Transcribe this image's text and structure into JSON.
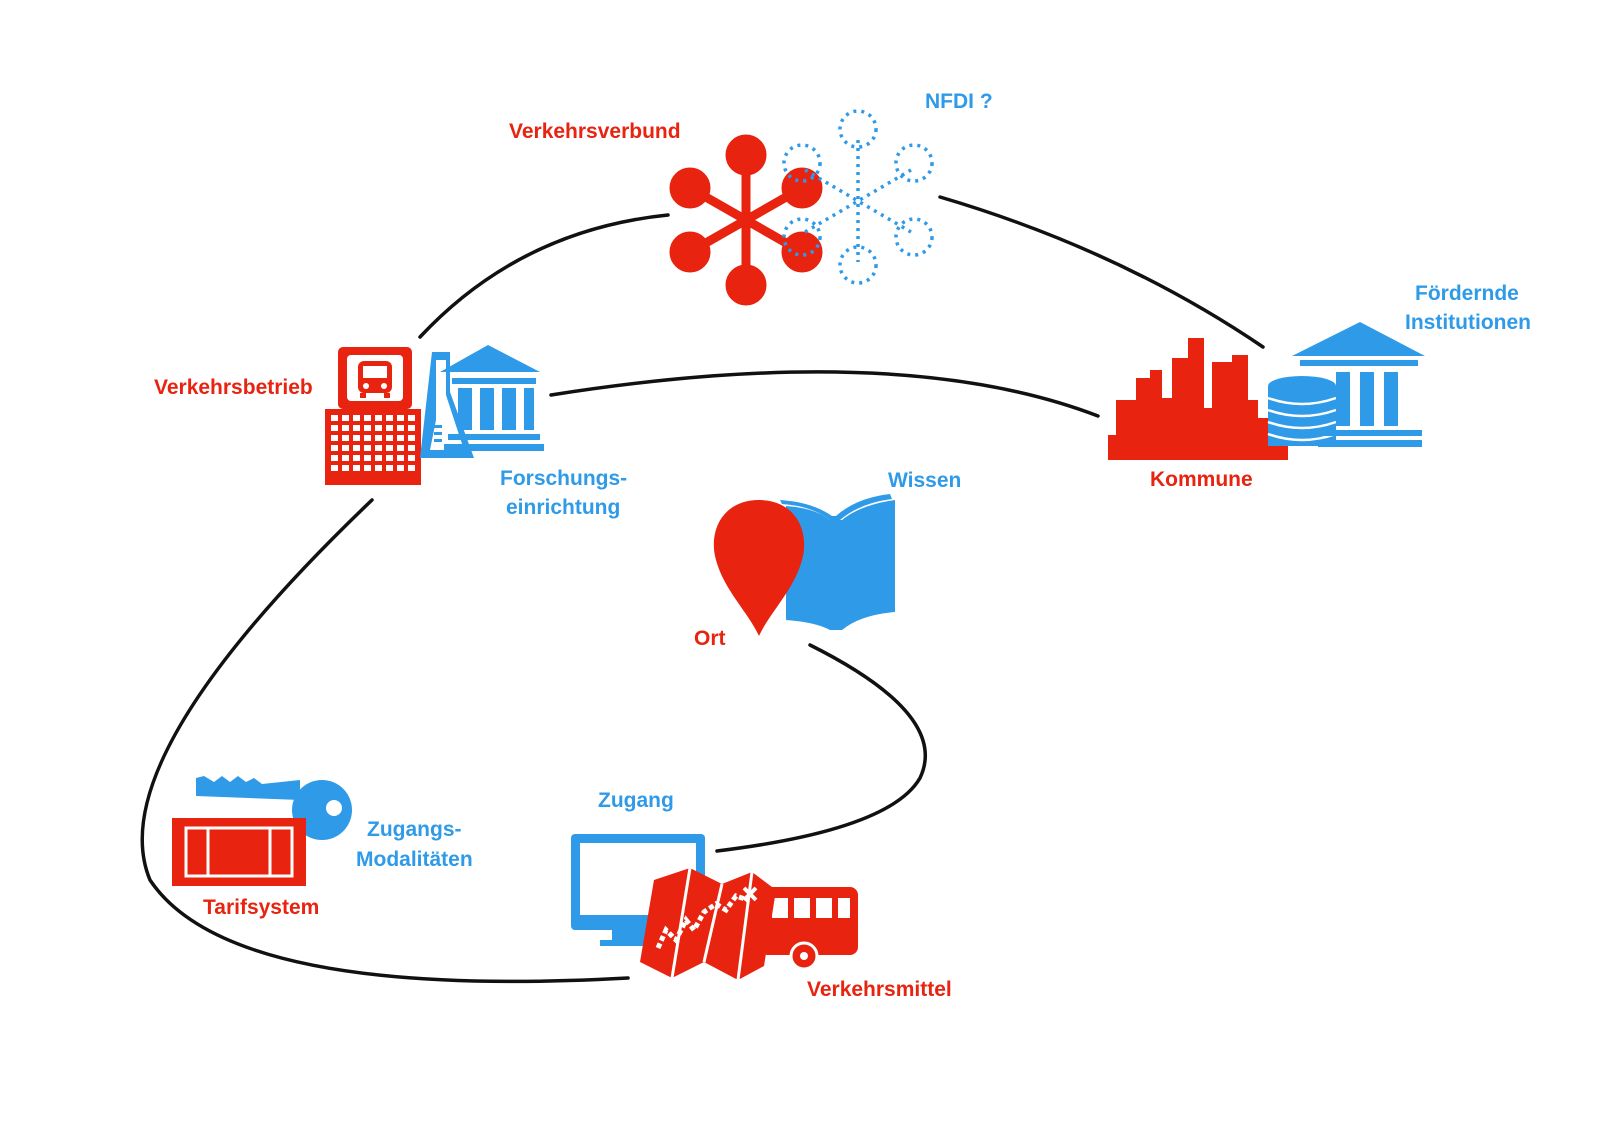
{
  "colors": {
    "red": "#e8230f",
    "blue": "#2f9be8",
    "line": "#111111"
  },
  "labels": {
    "verkehrsverbund": "Verkehrsverbund",
    "nfdi": "NFDI ?",
    "verkehrsbetrieb": "Verkehrsbetrieb",
    "forschung_1": "Forschungs-",
    "forschung_2": "einrichtung",
    "foerdernde_1": "Fördernde",
    "foerdernde_2": "Institutionen",
    "kommune": "Kommune",
    "wissen": "Wissen",
    "ort": "Ort",
    "zugang": "Zugang",
    "zugangs_1": "Zugangs-",
    "zugangs_2": "Modalitäten",
    "tarifsystem": "Tarifsystem",
    "verkehrsmittel": "Verkehrsmittel"
  },
  "icons": [
    "hub-network-icon",
    "dotted-network-icon",
    "bus-station-icon",
    "office-building-icon",
    "lab-flask-icon",
    "research-institution-icon",
    "city-skyline-icon",
    "coins-icon",
    "funding-institution-icon",
    "location-pin-icon",
    "book-icon",
    "key-icon",
    "ticket-icon",
    "monitor-icon",
    "map-icon",
    "bus-icon"
  ]
}
